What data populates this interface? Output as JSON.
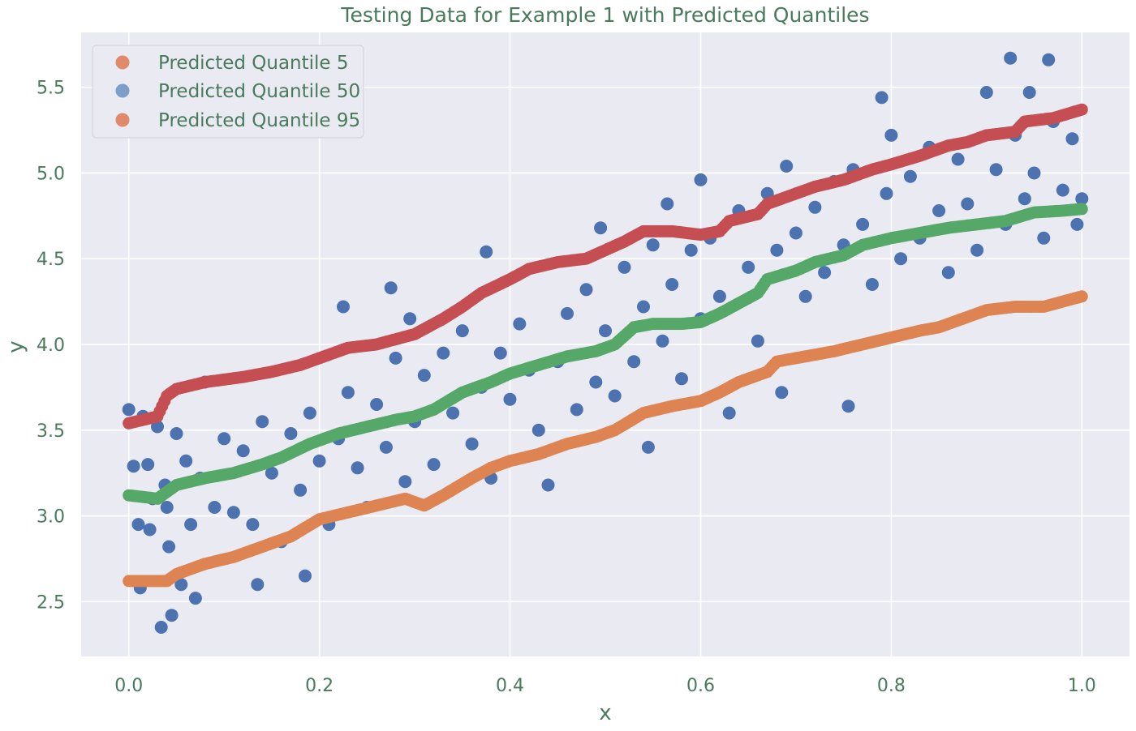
{
  "chart_data": {
    "type": "scatter",
    "title": "Testing Data for Example 1 with Predicted Quantiles",
    "xlabel": "x",
    "ylabel": "y",
    "xlim": [
      -0.05,
      1.05
    ],
    "ylim": [
      2.18,
      5.82
    ],
    "x_ticks": [
      0.0,
      0.2,
      0.4,
      0.6,
      0.8,
      1.0
    ],
    "x_tick_labels": [
      "0.0",
      "0.2",
      "0.4",
      "0.6",
      "0.8",
      "1.0"
    ],
    "y_ticks": [
      2.5,
      3.0,
      3.5,
      4.0,
      4.5,
      5.0,
      5.5
    ],
    "y_tick_labels": [
      "2.5",
      "3.0",
      "3.5",
      "4.0",
      "4.5",
      "5.0",
      "5.5"
    ],
    "grid": true,
    "background": "#eaeaf2",
    "legend_position": "top-left",
    "legend": [
      {
        "label": "Predicted Quantile 5",
        "color": "#e08a6a"
      },
      {
        "label": "Predicted Quantile 50",
        "color": "#7d9ec8"
      },
      {
        "label": "Predicted Quantile 95",
        "color": "#e08a6a"
      }
    ],
    "series": [
      {
        "color": "#4c72b0",
        "points": [
          [
            0.0,
            3.62
          ],
          [
            0.005,
            3.29
          ],
          [
            0.01,
            2.95
          ],
          [
            0.012,
            2.58
          ],
          [
            0.015,
            3.58
          ],
          [
            0.02,
            3.3
          ],
          [
            0.022,
            2.92
          ],
          [
            0.025,
            3.1
          ],
          [
            0.03,
            3.52
          ],
          [
            0.034,
            2.35
          ],
          [
            0.038,
            3.18
          ],
          [
            0.04,
            3.05
          ],
          [
            0.042,
            2.82
          ],
          [
            0.045,
            2.42
          ],
          [
            0.05,
            3.48
          ],
          [
            0.055,
            2.6
          ],
          [
            0.06,
            3.32
          ],
          [
            0.065,
            2.95
          ],
          [
            0.07,
            2.52
          ],
          [
            0.075,
            3.22
          ],
          [
            0.08,
            3.78
          ],
          [
            0.09,
            3.05
          ],
          [
            0.1,
            3.45
          ],
          [
            0.11,
            3.02
          ],
          [
            0.12,
            3.38
          ],
          [
            0.13,
            2.95
          ],
          [
            0.135,
            2.6
          ],
          [
            0.14,
            3.55
          ],
          [
            0.15,
            3.25
          ],
          [
            0.16,
            2.85
          ],
          [
            0.17,
            3.48
          ],
          [
            0.18,
            3.15
          ],
          [
            0.185,
            2.65
          ],
          [
            0.19,
            3.6
          ],
          [
            0.2,
            3.32
          ],
          [
            0.21,
            2.95
          ],
          [
            0.22,
            3.45
          ],
          [
            0.225,
            4.22
          ],
          [
            0.23,
            3.72
          ],
          [
            0.24,
            3.28
          ],
          [
            0.25,
            3.05
          ],
          [
            0.26,
            3.65
          ],
          [
            0.27,
            3.4
          ],
          [
            0.275,
            4.33
          ],
          [
            0.28,
            3.92
          ],
          [
            0.29,
            3.2
          ],
          [
            0.295,
            4.15
          ],
          [
            0.3,
            3.55
          ],
          [
            0.31,
            3.82
          ],
          [
            0.32,
            3.3
          ],
          [
            0.33,
            3.95
          ],
          [
            0.34,
            3.6
          ],
          [
            0.35,
            4.08
          ],
          [
            0.36,
            3.42
          ],
          [
            0.37,
            3.75
          ],
          [
            0.375,
            4.54
          ],
          [
            0.38,
            3.22
          ],
          [
            0.39,
            3.95
          ],
          [
            0.4,
            3.68
          ],
          [
            0.41,
            4.12
          ],
          [
            0.42,
            3.85
          ],
          [
            0.43,
            3.5
          ],
          [
            0.44,
            3.18
          ],
          [
            0.45,
            3.9
          ],
          [
            0.46,
            4.18
          ],
          [
            0.47,
            3.62
          ],
          [
            0.48,
            4.32
          ],
          [
            0.49,
            3.78
          ],
          [
            0.495,
            4.68
          ],
          [
            0.5,
            4.08
          ],
          [
            0.51,
            3.7
          ],
          [
            0.52,
            4.45
          ],
          [
            0.53,
            3.9
          ],
          [
            0.54,
            4.22
          ],
          [
            0.545,
            3.4
          ],
          [
            0.55,
            4.58
          ],
          [
            0.56,
            4.02
          ],
          [
            0.565,
            4.82
          ],
          [
            0.57,
            4.35
          ],
          [
            0.58,
            3.8
          ],
          [
            0.59,
            4.55
          ],
          [
            0.6,
            4.15
          ],
          [
            0.6,
            4.96
          ],
          [
            0.61,
            4.62
          ],
          [
            0.62,
            4.28
          ],
          [
            0.63,
            3.6
          ],
          [
            0.64,
            4.78
          ],
          [
            0.65,
            4.45
          ],
          [
            0.66,
            4.02
          ],
          [
            0.67,
            4.88
          ],
          [
            0.68,
            4.55
          ],
          [
            0.685,
            3.72
          ],
          [
            0.69,
            5.04
          ],
          [
            0.7,
            4.65
          ],
          [
            0.71,
            4.28
          ],
          [
            0.72,
            4.8
          ],
          [
            0.73,
            4.42
          ],
          [
            0.74,
            4.95
          ],
          [
            0.75,
            4.58
          ],
          [
            0.755,
            3.64
          ],
          [
            0.76,
            5.02
          ],
          [
            0.77,
            4.7
          ],
          [
            0.78,
            4.35
          ],
          [
            0.79,
            5.44
          ],
          [
            0.795,
            4.88
          ],
          [
            0.8,
            5.22
          ],
          [
            0.81,
            4.5
          ],
          [
            0.82,
            4.98
          ],
          [
            0.83,
            4.62
          ],
          [
            0.84,
            5.15
          ],
          [
            0.85,
            4.78
          ],
          [
            0.86,
            4.42
          ],
          [
            0.87,
            5.08
          ],
          [
            0.88,
            4.82
          ],
          [
            0.89,
            4.55
          ],
          [
            0.9,
            5.47
          ],
          [
            0.91,
            5.02
          ],
          [
            0.92,
            4.7
          ],
          [
            0.925,
            5.67
          ],
          [
            0.93,
            5.22
          ],
          [
            0.94,
            4.85
          ],
          [
            0.945,
            5.47
          ],
          [
            0.95,
            5.0
          ],
          [
            0.96,
            4.62
          ],
          [
            0.965,
            5.66
          ],
          [
            0.97,
            5.3
          ],
          [
            0.98,
            4.9
          ],
          [
            0.99,
            5.2
          ],
          [
            0.995,
            4.7
          ],
          [
            1.0,
            4.85
          ]
        ]
      },
      {
        "color": "#c44e52",
        "points": [
          [
            0.0,
            3.54
          ],
          [
            0.03,
            3.58
          ],
          [
            0.04,
            3.7
          ],
          [
            0.05,
            3.74
          ],
          [
            0.08,
            3.78
          ],
          [
            0.12,
            3.81
          ],
          [
            0.15,
            3.84
          ],
          [
            0.18,
            3.88
          ],
          [
            0.2,
            3.92
          ],
          [
            0.23,
            3.98
          ],
          [
            0.26,
            4.0
          ],
          [
            0.3,
            4.06
          ],
          [
            0.33,
            4.15
          ],
          [
            0.35,
            4.22
          ],
          [
            0.37,
            4.3
          ],
          [
            0.4,
            4.38
          ],
          [
            0.42,
            4.44
          ],
          [
            0.45,
            4.48
          ],
          [
            0.48,
            4.5
          ],
          [
            0.5,
            4.55
          ],
          [
            0.52,
            4.6
          ],
          [
            0.54,
            4.66
          ],
          [
            0.57,
            4.66
          ],
          [
            0.6,
            4.64
          ],
          [
            0.62,
            4.66
          ],
          [
            0.63,
            4.72
          ],
          [
            0.66,
            4.76
          ],
          [
            0.67,
            4.82
          ],
          [
            0.7,
            4.88
          ],
          [
            0.72,
            4.92
          ],
          [
            0.75,
            4.96
          ],
          [
            0.78,
            5.02
          ],
          [
            0.8,
            5.05
          ],
          [
            0.83,
            5.1
          ],
          [
            0.86,
            5.16
          ],
          [
            0.88,
            5.18
          ],
          [
            0.9,
            5.22
          ],
          [
            0.93,
            5.24
          ],
          [
            0.94,
            5.3
          ],
          [
            0.97,
            5.32
          ],
          [
            1.0,
            5.37
          ]
        ]
      },
      {
        "color": "#55a868",
        "points": [
          [
            0.0,
            3.12
          ],
          [
            0.03,
            3.1
          ],
          [
            0.05,
            3.18
          ],
          [
            0.08,
            3.22
          ],
          [
            0.11,
            3.25
          ],
          [
            0.14,
            3.3
          ],
          [
            0.16,
            3.34
          ],
          [
            0.19,
            3.42
          ],
          [
            0.22,
            3.48
          ],
          [
            0.25,
            3.52
          ],
          [
            0.28,
            3.56
          ],
          [
            0.3,
            3.58
          ],
          [
            0.32,
            3.62
          ],
          [
            0.35,
            3.72
          ],
          [
            0.38,
            3.78
          ],
          [
            0.4,
            3.83
          ],
          [
            0.43,
            3.88
          ],
          [
            0.46,
            3.93
          ],
          [
            0.49,
            3.96
          ],
          [
            0.51,
            4.0
          ],
          [
            0.53,
            4.1
          ],
          [
            0.55,
            4.12
          ],
          [
            0.58,
            4.12
          ],
          [
            0.6,
            4.13
          ],
          [
            0.62,
            4.18
          ],
          [
            0.64,
            4.24
          ],
          [
            0.66,
            4.3
          ],
          [
            0.67,
            4.38
          ],
          [
            0.7,
            4.43
          ],
          [
            0.72,
            4.48
          ],
          [
            0.75,
            4.52
          ],
          [
            0.77,
            4.58
          ],
          [
            0.8,
            4.62
          ],
          [
            0.83,
            4.65
          ],
          [
            0.86,
            4.68
          ],
          [
            0.89,
            4.7
          ],
          [
            0.92,
            4.72
          ],
          [
            0.95,
            4.77
          ],
          [
            0.98,
            4.78
          ],
          [
            1.0,
            4.79
          ]
        ]
      },
      {
        "color": "#dd8452",
        "points": [
          [
            0.0,
            2.62
          ],
          [
            0.04,
            2.62
          ],
          [
            0.05,
            2.66
          ],
          [
            0.08,
            2.72
          ],
          [
            0.11,
            2.76
          ],
          [
            0.14,
            2.82
          ],
          [
            0.17,
            2.88
          ],
          [
            0.2,
            2.98
          ],
          [
            0.23,
            3.02
          ],
          [
            0.26,
            3.06
          ],
          [
            0.29,
            3.1
          ],
          [
            0.31,
            3.06
          ],
          [
            0.33,
            3.12
          ],
          [
            0.36,
            3.22
          ],
          [
            0.38,
            3.28
          ],
          [
            0.4,
            3.32
          ],
          [
            0.43,
            3.36
          ],
          [
            0.46,
            3.42
          ],
          [
            0.49,
            3.46
          ],
          [
            0.51,
            3.5
          ],
          [
            0.54,
            3.6
          ],
          [
            0.57,
            3.64
          ],
          [
            0.6,
            3.67
          ],
          [
            0.62,
            3.72
          ],
          [
            0.64,
            3.78
          ],
          [
            0.67,
            3.84
          ],
          [
            0.68,
            3.9
          ],
          [
            0.71,
            3.93
          ],
          [
            0.74,
            3.96
          ],
          [
            0.77,
            4.0
          ],
          [
            0.8,
            4.04
          ],
          [
            0.83,
            4.08
          ],
          [
            0.85,
            4.1
          ],
          [
            0.88,
            4.16
          ],
          [
            0.9,
            4.2
          ],
          [
            0.93,
            4.22
          ],
          [
            0.96,
            4.22
          ],
          [
            0.98,
            4.25
          ],
          [
            1.0,
            4.28
          ]
        ]
      }
    ]
  }
}
